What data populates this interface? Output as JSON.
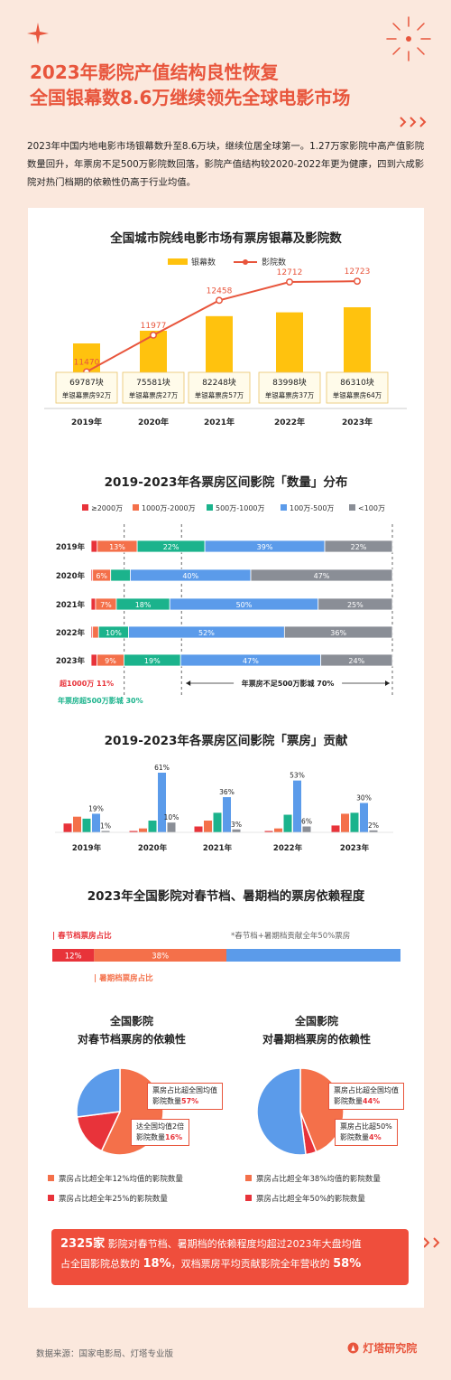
{
  "title": {
    "line1": "2023年影院产值结构良性恢复",
    "line2": "全国银幕数8.6万继续领先全球电影市场"
  },
  "intro": "2023年中国内地电影市场银幕数升至8.6万块，继续位居全球第一。1.27万家影院中高产值影院数量回升，年票房不足500万影院数回落，影院产值结构较2020-2022年更为健康，四到六成影院对热门档期的依赖性仍高于行业均值。",
  "chart_data": [
    {
      "type": "bar",
      "title": "全国城市院线电影市场有票房银幕及影院数",
      "legend": [
        "银幕数",
        "影院数"
      ],
      "categories": [
        "2019年",
        "2020年",
        "2021年",
        "2022年",
        "2023年"
      ],
      "series": [
        {
          "name": "银幕数",
          "values": [
            69787,
            75581,
            82248,
            83998,
            86310
          ],
          "labels": [
            "69787块",
            "75581块",
            "82248块",
            "83998块",
            "86310块"
          ]
        },
        {
          "name": "影院数",
          "values": [
            11470,
            11977,
            12458,
            12712,
            12723
          ]
        }
      ],
      "sublabels": [
        "单银幕票房92万",
        "单银幕票房27万",
        "单银幕票房57万",
        "单银幕票房37万",
        "单银幕票房64万"
      ],
      "colors": {
        "screens": "#ffc20e",
        "cinemas": "#e8553c"
      }
    },
    {
      "type": "bar",
      "title": "2019-2023年各票房区间影院「数量」分布",
      "legend": [
        "≥2000万",
        "1000万-2000万",
        "500万-1000万",
        "100万-500万",
        "<100万"
      ],
      "colors": [
        "#e8333a",
        "#f4704a",
        "#1bb38c",
        "#5b9bea",
        "#8a8e96"
      ],
      "categories": [
        "2019年",
        "2020年",
        "2021年",
        "2022年",
        "2023年"
      ],
      "values": [
        [
          2,
          13,
          22,
          39,
          22
        ],
        [
          0.5,
          6,
          6.5,
          40,
          47
        ],
        [
          1.5,
          7,
          18,
          50,
          25
        ],
        [
          0.5,
          2,
          10,
          52,
          36
        ],
        [
          2,
          9,
          19,
          47,
          24
        ]
      ],
      "labels": [
        [
          "",
          "13%",
          "22%",
          "39%",
          "22%"
        ],
        [
          "",
          "6%",
          "",
          "40%",
          "47%"
        ],
        [
          "",
          "7%",
          "18%",
          "50%",
          "25%"
        ],
        [
          "",
          "",
          "10%",
          "52%",
          "36%"
        ],
        [
          "",
          "9%",
          "19%",
          "47%",
          "24%"
        ]
      ],
      "annotations": {
        "over1000": "超1000万 11%",
        "over500": "年票房超500万影城 30%",
        "under500": "年票房不足500万影城 70%"
      }
    },
    {
      "type": "bar",
      "title": "2019-2023年各票房区间影院「票房」贡献",
      "categories": [
        "2019年",
        "2020年",
        "2021年",
        "2022年",
        "2023年"
      ],
      "colors": [
        "#e8333a",
        "#f4704a",
        "#1bb38c",
        "#5b9bea",
        "#8a8e96"
      ],
      "values": [
        [
          9,
          16,
          14,
          19,
          1
        ],
        [
          0.5,
          4,
          12,
          61,
          10
        ],
        [
          6,
          12,
          20,
          36,
          3
        ],
        [
          1,
          4,
          18,
          53,
          6
        ],
        [
          7,
          19,
          20,
          30,
          2
        ]
      ],
      "labels": [
        [
          "",
          "",
          "",
          "19%",
          "1%"
        ],
        [
          "",
          "",
          "",
          "61%",
          "10%"
        ],
        [
          "",
          "",
          "",
          "36%",
          "3%"
        ],
        [
          "",
          "",
          "",
          "53%",
          "6%"
        ],
        [
          "",
          "",
          "",
          "30%",
          "2%"
        ]
      ]
    }
  ],
  "dependency": {
    "title": "2023年全国影院对春节档、暑期档的票房依赖程度",
    "spring_label": "| 春节档票房占比",
    "summer_label": "| 暑期档票房占比",
    "note": "*春节档+暑期档贡献全年50%票房",
    "bar_values": [
      12,
      38,
      50
    ],
    "bar_labels": [
      "12%",
      "38%"
    ],
    "bar_colors": [
      "#e8333a",
      "#f4704a",
      "#5b9bea"
    ]
  },
  "pies": [
    {
      "title1": "全国影院",
      "title2": "对春节档票房的依赖性",
      "slices": [
        57,
        16,
        27
      ],
      "colors": [
        "#f4704a",
        "#e8333a",
        "#5b9bea"
      ],
      "callout1": {
        "text": "票房占比超全国均值",
        "text2": "影院数量",
        "value": "57%"
      },
      "callout2": {
        "text": "达全国均值2倍",
        "text2": "影院数量",
        "value": "16%"
      },
      "legend": [
        "票房占比超全年12%均值的影院数量",
        "票房占比超全年25%的影院数量"
      ]
    },
    {
      "title1": "全国影院",
      "title2": "对暑期档票房的依赖性",
      "slices": [
        44,
        4,
        52
      ],
      "colors": [
        "#f4704a",
        "#e8333a",
        "#5b9bea"
      ],
      "callout1": {
        "text": "票房占比超全国均值",
        "text2": "影院数量",
        "value": "44%"
      },
      "callout2": {
        "text": "票房占比超50%",
        "text2": "影院数量",
        "value": "4%"
      },
      "legend": [
        "票房占比超全年38%均值的影院数量",
        "票房占比超全年50%的影院数量"
      ]
    }
  ],
  "banner": {
    "count": "2325家",
    "text1": " 影院对春节档、暑期档的依赖程度均超过2023年大盘均值",
    "text2a": "占全国影院总数的 ",
    "pct1": "18%",
    "text2b": "，双档票房平均贡献影院全年营收的 ",
    "pct2": "58%"
  },
  "footer": "数据来源：国家电影局、灯塔专业版",
  "logo": "灯塔研究院"
}
